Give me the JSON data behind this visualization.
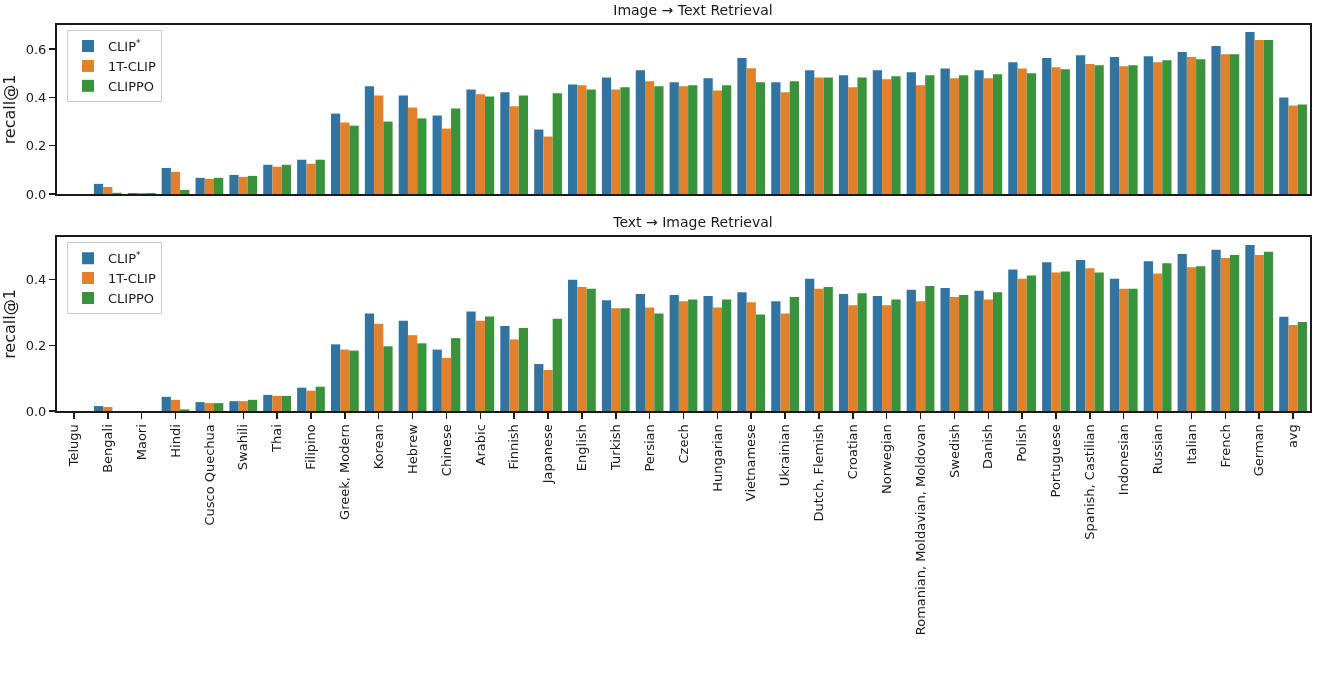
{
  "chart_data": [
    {
      "type": "bar",
      "title": "Image → Text Retrieval",
      "ylabel": "recall@1",
      "legend": "top left",
      "tick_labels": "y",
      "grid": false,
      "categories": [
        null,
        null,
        null,
        null,
        null,
        null,
        null,
        null,
        null,
        null,
        null,
        null,
        null,
        null,
        null,
        null,
        null,
        null,
        null,
        null,
        null,
        null,
        null,
        null,
        null,
        null,
        null,
        null,
        null,
        null,
        null,
        null,
        null,
        null,
        null,
        null,
        null
      ],
      "ylim": [
        0,
        0.7
      ],
      "yticks": [
        {
          "value": 0,
          "label": "0.0"
        },
        {
          "value": 0.2,
          "label": "0.2"
        },
        {
          "value": 0.4,
          "label": "0.4"
        },
        {
          "value": 0.6,
          "label": "0.6"
        }
      ],
      "series": [
        {
          "name": "CLIP$^{*}$",
          "color": "#3274a1",
          "values": [
            0,
            0.042,
            0.004,
            0.108,
            0.067,
            0.079,
            0.121,
            0.142,
            0.333,
            0.446,
            0.408,
            0.325,
            0.433,
            0.421,
            0.267,
            0.454,
            0.483,
            0.513,
            0.463,
            0.479,
            0.563,
            0.463,
            0.513,
            0.492,
            0.513,
            0.504,
            0.52,
            0.513,
            0.546,
            0.563,
            0.575,
            0.567,
            0.571,
            0.588,
            0.613,
            0.671,
            0.4
          ]
        },
        {
          "name": "1T-CLIP",
          "color": "#e1812c",
          "values": [
            0,
            0.029,
            0.004,
            0.092,
            0.063,
            0.071,
            0.113,
            0.125,
            0.296,
            0.408,
            0.358,
            0.271,
            0.413,
            0.363,
            0.238,
            0.45,
            0.433,
            0.467,
            0.446,
            0.429,
            0.521,
            0.421,
            0.483,
            0.442,
            0.475,
            0.45,
            0.479,
            0.479,
            0.52,
            0.525,
            0.538,
            0.529,
            0.546,
            0.567,
            0.579,
            0.638,
            0.367
          ]
        },
        {
          "name": "CLIPPO",
          "color": "#3a923a",
          "values": [
            0,
            0.005,
            0.004,
            0.017,
            0.067,
            0.075,
            0.121,
            0.142,
            0.283,
            0.3,
            0.313,
            0.354,
            0.404,
            0.408,
            0.417,
            0.433,
            0.442,
            0.446,
            0.45,
            0.45,
            0.463,
            0.467,
            0.483,
            0.483,
            0.488,
            0.492,
            0.492,
            0.496,
            0.5,
            0.517,
            0.533,
            0.533,
            0.554,
            0.558,
            0.579,
            0.638,
            0.371
          ]
        }
      ]
    },
    {
      "type": "bar",
      "title": "Text → Image Retrieval",
      "ylabel": "recall@1",
      "legend": "top left",
      "grid": false,
      "categories": [
        "Telugu",
        "Bengali",
        "Maori",
        "Hindi",
        "Cusco Quechua",
        "Swahili",
        "Thai",
        "Filipino",
        "Greek, Modern",
        "Korean",
        "Hebrew",
        "Chinese",
        "Arabic",
        "Finnish",
        "Japanese",
        "English",
        "Turkish",
        "Persian",
        "Czech",
        "Hungarian",
        "Vietnamese",
        "Ukrainian",
        "Dutch, Flemish",
        "Croatian",
        "Norwegian",
        "Romanian, Moldavian, Moldovan",
        "Swedish",
        "Danish",
        "Polish",
        "Portuguese",
        "Spanish, Castilian",
        "Indonesian",
        "Russian",
        "Italian",
        "French",
        "German",
        "avg"
      ],
      "ylim": [
        0,
        0.53
      ],
      "yticks": [
        {
          "value": 0,
          "label": "0.0"
        },
        {
          "value": 0.2,
          "label": "0.2"
        },
        {
          "value": 0.4,
          "label": "0.4"
        }
      ],
      "series": [
        {
          "name": "CLIP$^{*}$",
          "color": "#3274a1",
          "values": [
            0,
            0.015,
            0,
            0.043,
            0.027,
            0.03,
            0.049,
            0.071,
            0.203,
            0.297,
            0.275,
            0.187,
            0.303,
            0.259,
            0.143,
            0.4,
            0.337,
            0.356,
            0.353,
            0.35,
            0.362,
            0.334,
            0.403,
            0.356,
            0.35,
            0.369,
            0.375,
            0.366,
            0.431,
            0.453,
            0.46,
            0.403,
            0.456,
            0.478,
            0.491,
            0.506,
            0.287
          ]
        },
        {
          "name": "1T-CLIP",
          "color": "#e1812c",
          "values": [
            0,
            0.012,
            0,
            0.034,
            0.024,
            0.03,
            0.046,
            0.062,
            0.187,
            0.266,
            0.231,
            0.162,
            0.275,
            0.218,
            0.125,
            0.378,
            0.313,
            0.315,
            0.334,
            0.315,
            0.331,
            0.297,
            0.372,
            0.322,
            0.322,
            0.334,
            0.347,
            0.34,
            0.403,
            0.422,
            0.435,
            0.372,
            0.419,
            0.438,
            0.466,
            0.475,
            0.262
          ]
        },
        {
          "name": "CLIPPO",
          "color": "#3a923a",
          "values": [
            0,
            0,
            0,
            0.005,
            0.024,
            0.034,
            0.046,
            0.074,
            0.184,
            0.197,
            0.206,
            0.222,
            0.288,
            0.253,
            0.281,
            0.372,
            0.313,
            0.297,
            0.34,
            0.34,
            0.294,
            0.347,
            0.378,
            0.359,
            0.34,
            0.381,
            0.353,
            0.362,
            0.413,
            0.425,
            0.422,
            0.372,
            0.45,
            0.441,
            0.475,
            0.485,
            0.271
          ]
        }
      ]
    }
  ]
}
